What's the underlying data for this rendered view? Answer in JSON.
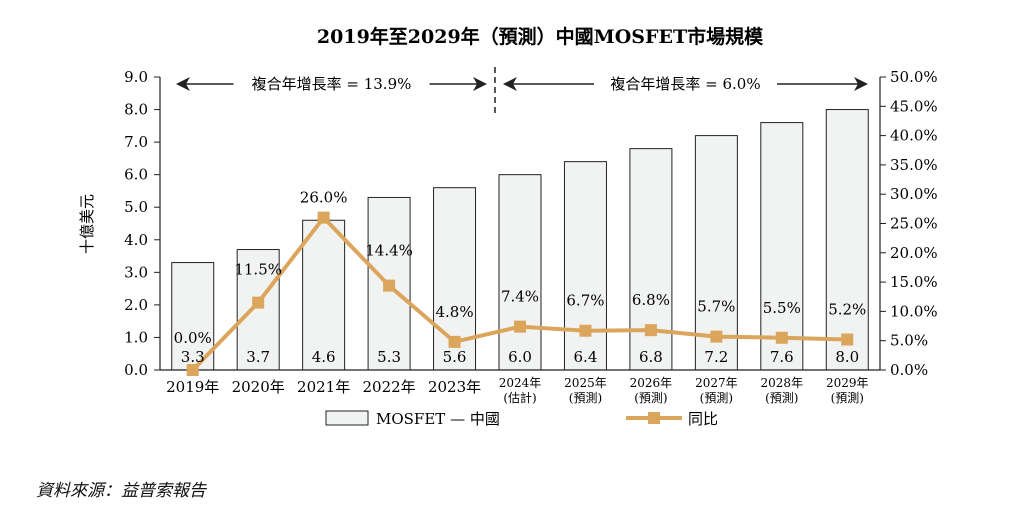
{
  "chart_data": {
    "type": "bar",
    "title": "2019年至2029年（預測）中國MOSFET市場規模",
    "ylabel": "十億美元",
    "y2label": "",
    "ylim": [
      0,
      9
    ],
    "y2lim": [
      0,
      50
    ],
    "yticks": [
      "0.0",
      "1.0",
      "2.0",
      "3.0",
      "4.0",
      "5.0",
      "6.0",
      "7.0",
      "8.0",
      "9.0"
    ],
    "y2ticks": [
      "0.0%",
      "5.0%",
      "10.0%",
      "15.0%",
      "20.0%",
      "25.0%",
      "30.0%",
      "35.0%",
      "40.0%",
      "45.0%",
      "50.0%"
    ],
    "categories": [
      [
        "2019年"
      ],
      [
        "2020年"
      ],
      [
        "2021年"
      ],
      [
        "2022年"
      ],
      [
        "2023年"
      ],
      [
        "2024年",
        "(估計)"
      ],
      [
        "2025年",
        "(預測)"
      ],
      [
        "2026年",
        "(預測)"
      ],
      [
        "2027年",
        "(預測)"
      ],
      [
        "2028年",
        "(預測)"
      ],
      [
        "2029年",
        "(預測)"
      ]
    ],
    "series": [
      {
        "name": "MOSFET — 中國",
        "type": "bar",
        "values": [
          3.3,
          3.7,
          4.6,
          5.3,
          5.6,
          6.0,
          6.4,
          6.8,
          7.2,
          7.6,
          8.0
        ],
        "labels": [
          "3.3",
          "3.7",
          "4.6",
          "5.3",
          "5.6",
          "6.0",
          "6.4",
          "6.8",
          "7.2",
          "7.6",
          "8.0"
        ],
        "color": "#f1f3f2"
      },
      {
        "name": "同比",
        "type": "line",
        "axis": "right",
        "values": [
          0.0,
          11.5,
          26.0,
          14.4,
          4.8,
          7.4,
          6.7,
          6.8,
          5.7,
          5.5,
          5.2
        ],
        "labels": [
          "0.0%",
          "11.5%",
          "26.0%",
          "14.4%",
          "4.8%",
          "7.4%",
          "6.7%",
          "6.8%",
          "5.7%",
          "5.5%",
          "5.2%"
        ],
        "color": "#dba55c"
      }
    ],
    "annotations": [
      {
        "text": "複合年增長率 = 13.9%",
        "from": "2019年",
        "to": "2023年"
      },
      {
        "text": "複合年增長率 = 6.0%",
        "from": "2024年",
        "to": "2029年"
      }
    ],
    "legend": "bottom",
    "grid": false
  },
  "source": "資料來源：益普索報告"
}
